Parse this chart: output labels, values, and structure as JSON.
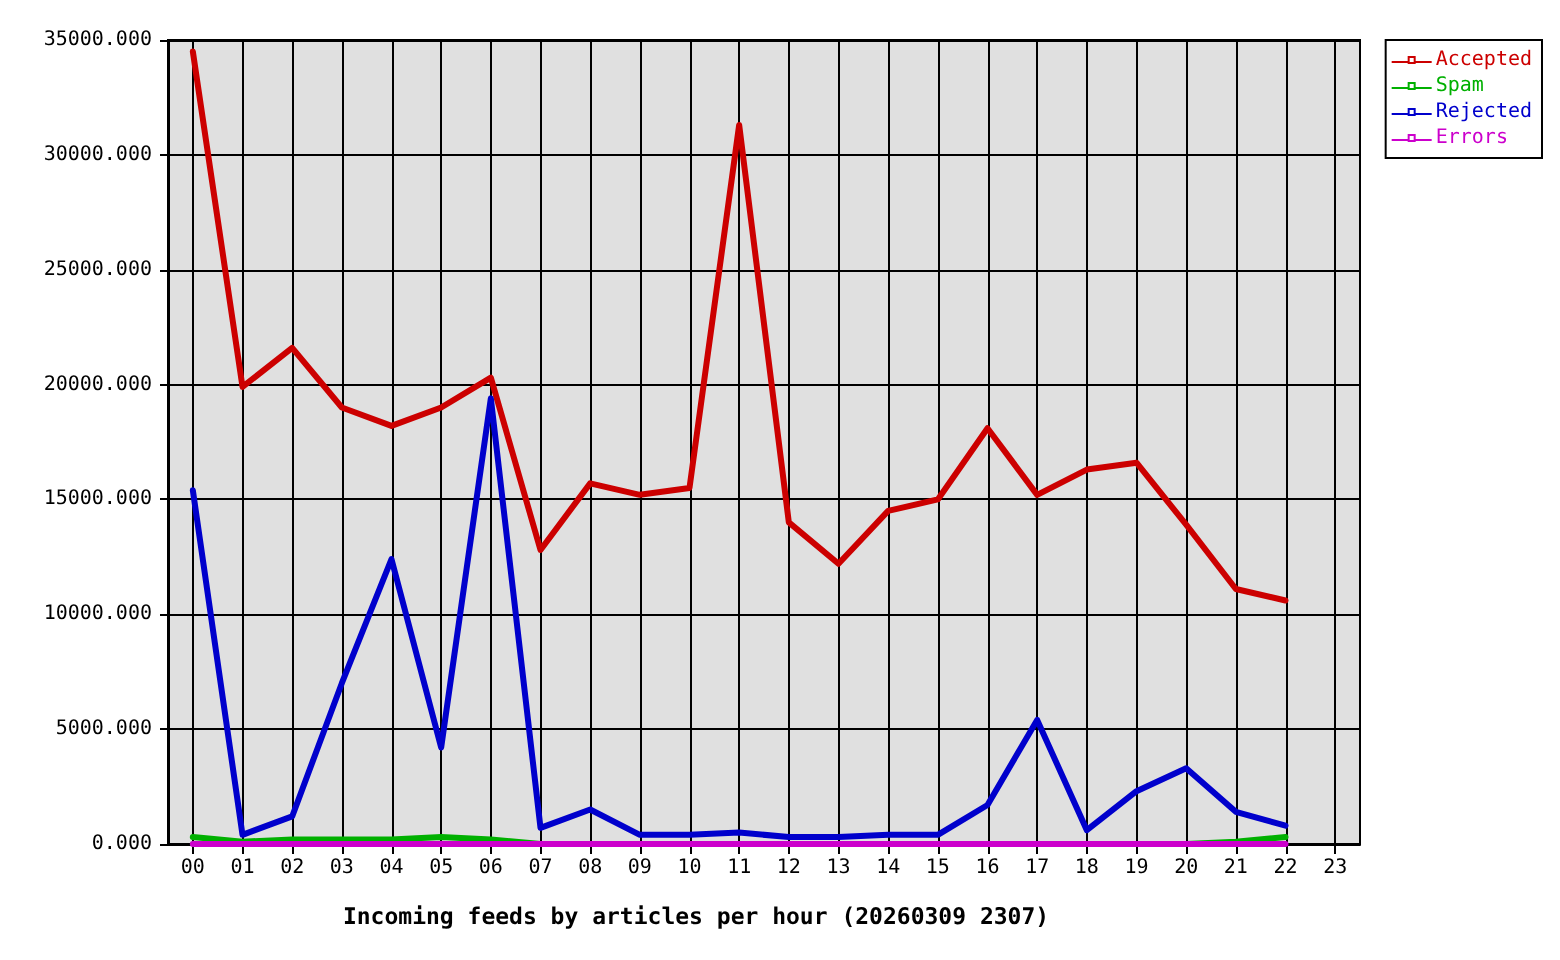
{
  "chart_data": {
    "type": "line",
    "xlabel": "Incoming feeds by articles per hour (20260309 2307)",
    "categories": [
      "00",
      "01",
      "02",
      "03",
      "04",
      "05",
      "06",
      "07",
      "08",
      "09",
      "10",
      "11",
      "12",
      "13",
      "14",
      "15",
      "16",
      "17",
      "18",
      "19",
      "20",
      "21",
      "22",
      "23"
    ],
    "series": [
      {
        "name": "Accepted",
        "color": "#cc0000",
        "values": [
          34500,
          19900,
          21600,
          19000,
          18200,
          19000,
          20300,
          12800,
          15700,
          15200,
          15500,
          31300,
          14000,
          12200,
          14500,
          15000,
          18100,
          15200,
          16300,
          16600,
          13900,
          11100,
          10600,
          null
        ]
      },
      {
        "name": "Spam",
        "color": "#00b000",
        "values": [
          300,
          100,
          200,
          200,
          200,
          300,
          200,
          0,
          null,
          null,
          null,
          null,
          null,
          null,
          null,
          null,
          null,
          null,
          null,
          null,
          0,
          100,
          300,
          null
        ]
      },
      {
        "name": "Rejected",
        "color": "#0000cc",
        "values": [
          15400,
          400,
          1200,
          7000,
          12400,
          4200,
          19400,
          700,
          1500,
          400,
          400,
          500,
          300,
          300,
          400,
          400,
          1700,
          5400,
          600,
          2300,
          3300,
          1400,
          800,
          null
        ]
      },
      {
        "name": "Errors",
        "color": "#cc00cc",
        "values": [
          0,
          0,
          0,
          0,
          0,
          0,
          0,
          0,
          0,
          0,
          0,
          0,
          0,
          0,
          0,
          0,
          0,
          0,
          0,
          0,
          0,
          0,
          0,
          null
        ]
      }
    ],
    "ylim": [
      0,
      35000
    ],
    "yticks": [
      {
        "value": 0,
        "label": "0.000"
      },
      {
        "value": 5000,
        "label": "5000.000"
      },
      {
        "value": 10000,
        "label": "10000.000"
      },
      {
        "value": 15000,
        "label": "15000.000"
      },
      {
        "value": 20000,
        "label": "20000.000"
      },
      {
        "value": 25000,
        "label": "25000.000"
      },
      {
        "value": 30000,
        "label": "30000.000"
      },
      {
        "value": 35000,
        "label": "35000.000"
      }
    ],
    "grid": true,
    "legend": "top right",
    "marker": "none",
    "line_style": "solid"
  }
}
